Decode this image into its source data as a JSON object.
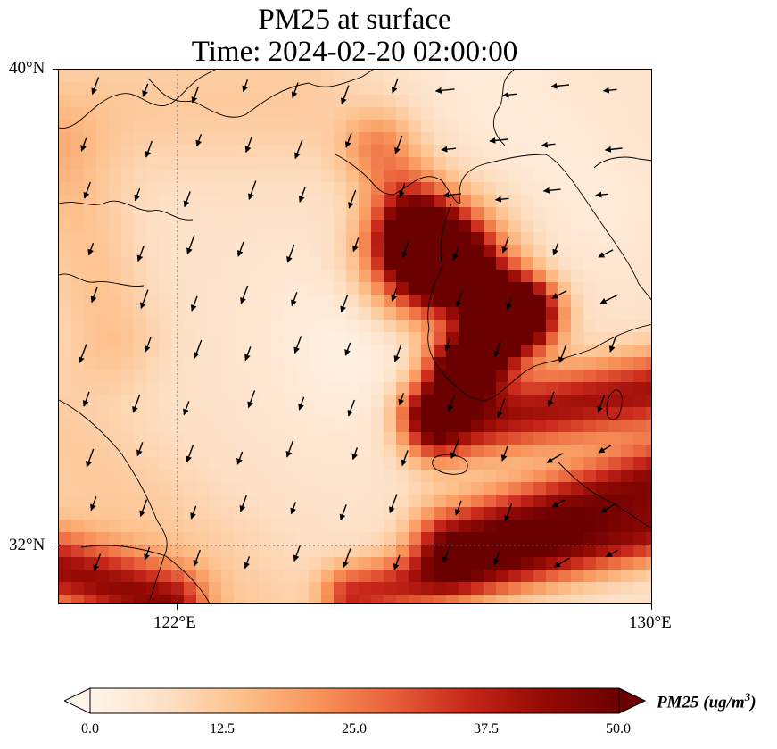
{
  "title_line1": "PM25 at surface",
  "title_line2": "Time: 2024-02-20 02:00:00",
  "lat_labels": [
    "40°N",
    "32°N"
  ],
  "lon_labels": [
    "122°E",
    "130°E"
  ],
  "colorbar": {
    "label_main": "PM25 (ug/m",
    "label_sup": "3",
    "label_close": ")",
    "ticks": [
      "0.0",
      "12.5",
      "25.0",
      "37.5",
      "50.0"
    ],
    "colors": [
      "#fff5eb",
      "#fde0c5",
      "#fdc08b",
      "#f8945a",
      "#e8603a",
      "#c7261a",
      "#940a04",
      "#6b0000"
    ]
  },
  "map_extent": {
    "lon": [
      120.0,
      130.0
    ],
    "lat": [
      31.0,
      40.0
    ]
  },
  "gridlines": {
    "lon": 122.0,
    "lat": 32.0,
    "style": "dotted"
  },
  "colormap": "OrRd"
}
